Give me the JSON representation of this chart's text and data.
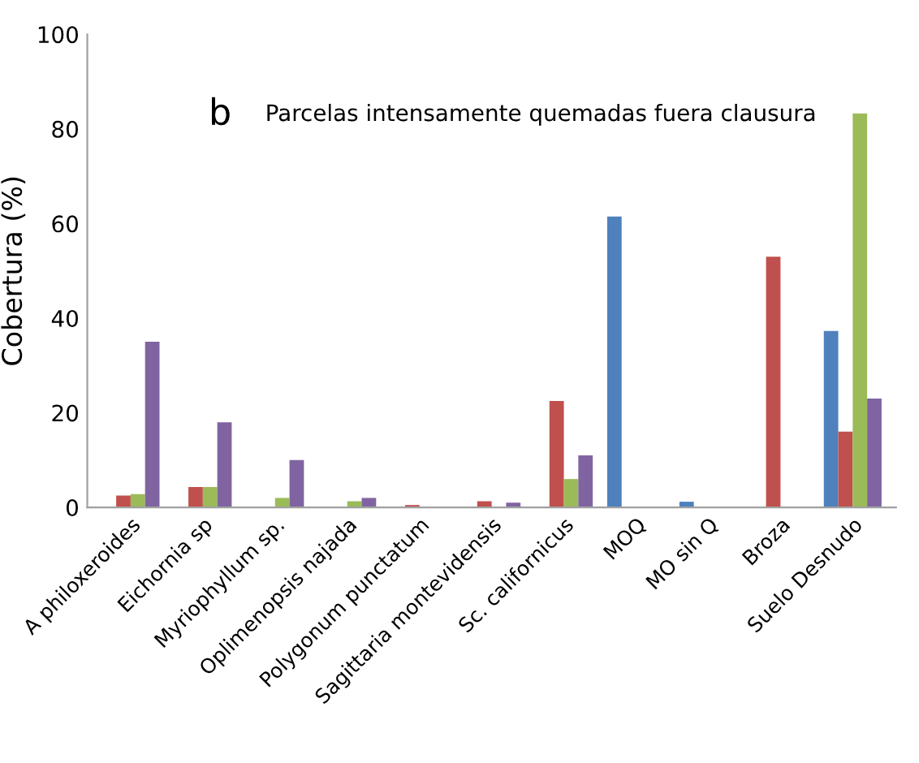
{
  "chart_data": {
    "type": "bar",
    "title": "Parcelas intensamente quemadas fuera clausura",
    "ylabel": "Cobertura (%)",
    "annotations": [
      "b"
    ],
    "categories": [
      "A philoxeroides",
      "Eichornia sp",
      "Myriophyllum sp.",
      "Oplimenopsis najada",
      "Polygonum punctatum",
      "Sagittaria montevidensis",
      "Sc. californicus",
      "MOQ",
      "MO sin Q",
      "Broza",
      "Suelo Desnudo"
    ],
    "series": [
      {
        "color": "#4f81bd",
        "values": [
          null,
          null,
          null,
          null,
          null,
          null,
          null,
          61.5,
          1.2,
          null,
          37.3
        ]
      },
      {
        "color": "#c0504d",
        "values": [
          2.5,
          4.3,
          null,
          null,
          0.5,
          1.3,
          22.5,
          null,
          null,
          53,
          16
        ]
      },
      {
        "color": "#9bbb59",
        "values": [
          2.8,
          4.3,
          2,
          1.3,
          null,
          null,
          6,
          null,
          null,
          null,
          83.3
        ]
      },
      {
        "color": "#8064a2",
        "values": [
          35,
          18,
          10,
          2,
          null,
          1,
          11,
          null,
          null,
          null,
          23
        ]
      }
    ],
    "ylim": [
      0,
      100
    ],
    "yticks": [
      0,
      20,
      40,
      60,
      80,
      100
    ],
    "grid": false
  }
}
